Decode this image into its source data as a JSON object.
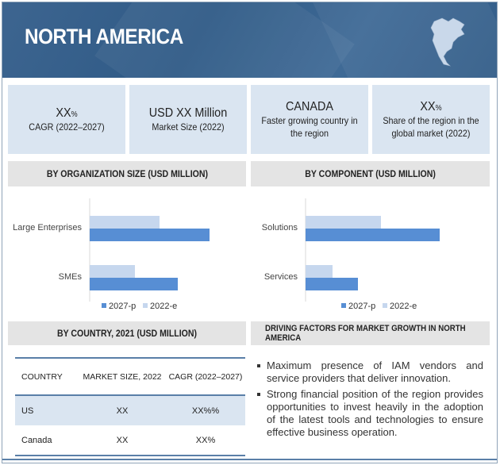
{
  "header": {
    "title": "NORTH AMERICA",
    "map_icon": "north-america-map-icon"
  },
  "cards": [
    {
      "value": "XX",
      "unit": "%",
      "label": "CAGR (2022–2027)"
    },
    {
      "value": "USD XX Million",
      "unit": "",
      "label": "Market Size (2022)"
    },
    {
      "value": "CANADA",
      "unit": "",
      "label": "Faster growing country in the region"
    },
    {
      "value": "XX",
      "unit": "%",
      "label": "Share of the region in the global market (2022)"
    }
  ],
  "sections": {
    "org_size": "BY ORGANIZATION SIZE (USD MILLION)",
    "component": "BY COMPONENT (USD MILLION)",
    "country": "BY COUNTRY, 2021 (USD MILLION)",
    "drivers": "DRIVING FACTORS FOR MARKET GROWTH IN NORTH AMERICA"
  },
  "chart_data": [
    {
      "type": "bar",
      "orientation": "horizontal",
      "categories": [
        "Large Enterprises",
        "SMEs"
      ],
      "series": [
        {
          "name": "2022-e",
          "values": [
            88,
            57
          ],
          "color": "#c6d7ee"
        },
        {
          "name": "2027-p",
          "values": [
            151,
            111
          ],
          "color": "#578ed4"
        }
      ],
      "legend": [
        "2027-p",
        "2022-e"
      ],
      "legend_position": "bottom",
      "grid": false,
      "axis_values_shown": false
    },
    {
      "type": "bar",
      "orientation": "horizontal",
      "categories": [
        "Solutions",
        "Services"
      ],
      "series": [
        {
          "name": "2022-e",
          "values": [
            95,
            34
          ],
          "color": "#c6d7ee"
        },
        {
          "name": "2027-p",
          "values": [
            169,
            66
          ],
          "color": "#578ed4"
        }
      ],
      "legend": [
        "2027-p",
        "2022-e"
      ],
      "legend_position": "bottom",
      "grid": false,
      "axis_values_shown": false
    }
  ],
  "table": {
    "headers": [
      "COUNTRY",
      "MARKET SIZE, 2022",
      "CAGR (2022–2027)"
    ],
    "rows": [
      [
        "US",
        "XX",
        "XX%%"
      ],
      [
        "Canada",
        "XX",
        "XX%"
      ]
    ]
  },
  "drivers": [
    "Maximum presence of IAM vendors and service providers that deliver innovation.",
    "Strong financial position of the region provides opportunities to invest heavily in the adoption of the latest tools and technologies to ensure effective business operation."
  ]
}
